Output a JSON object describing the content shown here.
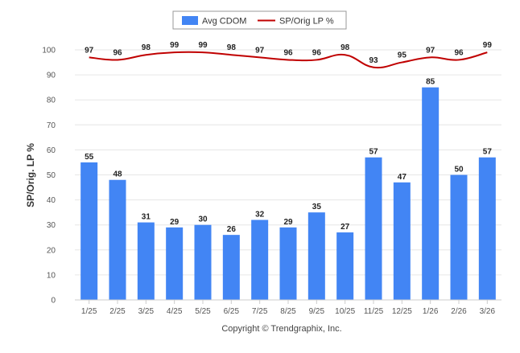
{
  "chart_data": {
    "type": "bar",
    "categories": [
      "1/25",
      "2/25",
      "3/25",
      "4/25",
      "5/25",
      "6/25",
      "7/25",
      "8/25",
      "9/25",
      "10/25",
      "11/25",
      "12/25",
      "1/26",
      "2/26",
      "3/26"
    ],
    "series": [
      {
        "name": "Avg CDOM",
        "type": "bar",
        "color": "#4285f4",
        "values": [
          55,
          48,
          31,
          29,
          30,
          26,
          32,
          29,
          35,
          27,
          57,
          47,
          85,
          50,
          57
        ]
      },
      {
        "name": "SP/Orig LP %",
        "type": "line",
        "color": "#c00000",
        "values": [
          97,
          96,
          98,
          99,
          99,
          98,
          97,
          96,
          96,
          98,
          93,
          95,
          97,
          96,
          99
        ]
      }
    ],
    "ylabel": "SP/Orig. LP %",
    "xlabel": "",
    "ylim": [
      0,
      100
    ],
    "yticks": [
      0,
      10,
      20,
      30,
      40,
      50,
      60,
      70,
      80,
      90,
      100
    ],
    "grid": true,
    "legend_position": "top-center",
    "footer": "Copyright © Trendgraphix, Inc."
  }
}
